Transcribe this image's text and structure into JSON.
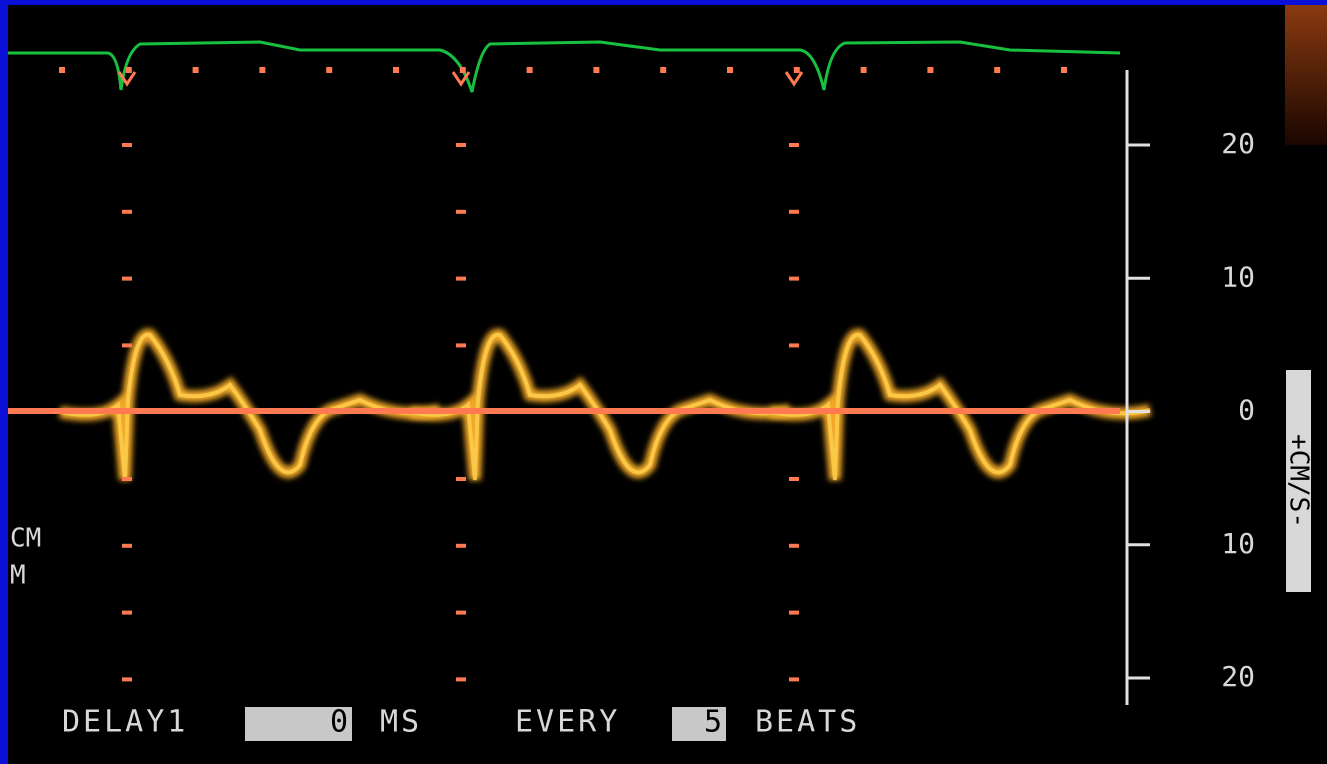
{
  "scale": {
    "ticks": [
      "20",
      "10",
      "0",
      "10",
      "20"
    ],
    "unit_label": "+CM/S-"
  },
  "depth_label": [
    "CM",
    "M"
  ],
  "footer": {
    "delay_label": "DELAY1",
    "delay_value": "0",
    "delay_unit": "MS",
    "every_label": "EVERY",
    "every_value": "5",
    "beats_label": "BEATS"
  }
}
